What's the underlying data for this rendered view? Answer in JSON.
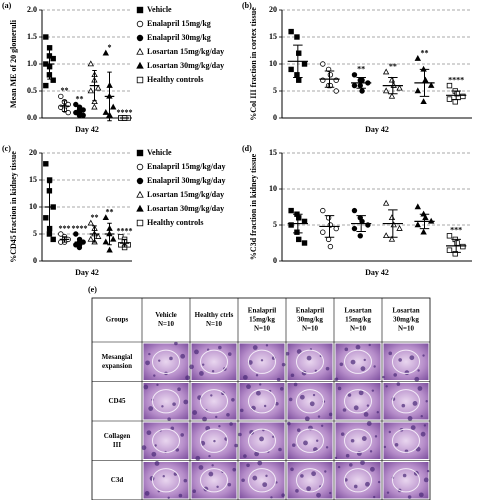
{
  "chart_data": [
    {
      "type": "dotplot",
      "label": "(a)",
      "ylabel": "Mean ME of 20 glomeruli",
      "xlabel": "Day 42",
      "legend": true,
      "grid": true,
      "ylim": [
        0,
        2
      ],
      "yticks": [
        {
          "value": 0,
          "label": "0.0"
        },
        {
          "value": 0.5,
          "label": "0.5"
        },
        {
          "value": 1,
          "label": "1.0"
        },
        {
          "value": 1.5,
          "label": "1.5"
        },
        {
          "value": 2,
          "label": "2.0"
        }
      ],
      "series": [
        {
          "name": "Vehicle",
          "marker": "square",
          "filled": true,
          "color": "#000",
          "values": [
            1.5,
            1.3,
            1.15,
            1.1,
            1.0,
            0.95,
            0.8,
            0.7,
            0.6
          ],
          "mean": 1.0,
          "sd": 0.28
        },
        {
          "name": "Enalapril 15mg/kg",
          "marker": "circle",
          "filled": false,
          "color": "#000",
          "values": [
            0.4,
            0.3,
            0.3,
            0.25,
            0.2,
            0.2,
            0.15,
            0.1
          ],
          "mean": 0.22,
          "sd": 0.1,
          "annotation": "**"
        },
        {
          "name": "Enalapril 30mg/kg",
          "marker": "circle",
          "filled": true,
          "color": "#000",
          "values": [
            0.25,
            0.2,
            0.15,
            0.15,
            0.1,
            0.1,
            0.05,
            0.05
          ],
          "mean": 0.12,
          "sd": 0.07,
          "annotation": "**"
        },
        {
          "name": "Losartan 15mg/kg/day",
          "marker": "triangle",
          "filled": false,
          "color": "#000",
          "values": [
            1.0,
            0.8,
            0.7,
            0.55,
            0.5,
            0.3,
            0.2
          ],
          "mean": 0.6,
          "sd": 0.28
        },
        {
          "name": "Losartan 30mg/kg/day",
          "marker": "triangle",
          "filled": true,
          "color": "#000",
          "values": [
            1.2,
            0.6,
            0.4,
            0.2,
            0.1,
            0.05,
            0.05
          ],
          "mean": 0.4,
          "sd": 0.45,
          "annotation": "*"
        },
        {
          "name": "Healthy controls",
          "marker": "square",
          "filled": false,
          "color": "#000",
          "values": [
            0,
            0,
            0,
            0,
            0,
            0
          ],
          "mean": 0,
          "sd": 0,
          "annotation": "****"
        }
      ]
    },
    {
      "type": "dotplot",
      "label": "(b)",
      "ylabel": "%Col III fraction in cortex tissue",
      "xlabel": "Day 42",
      "legend": false,
      "grid": true,
      "ylim": [
        0,
        20
      ],
      "yticks": [
        0,
        5,
        10,
        15,
        20
      ],
      "series": [
        {
          "name": "Vehicle",
          "marker": "square",
          "filled": true,
          "color": "#000",
          "values": [
            16,
            15,
            12,
            10,
            9,
            8,
            7
          ],
          "mean": 10.5,
          "sd": 3
        },
        {
          "name": "Enalapril 15mg/kg",
          "marker": "circle",
          "filled": false,
          "color": "#000",
          "values": [
            10,
            9,
            8,
            7,
            7,
            6,
            6,
            5
          ],
          "mean": 7.2,
          "sd": 1.5
        },
        {
          "name": "Enalapril 30mg/kg",
          "marker": "circle",
          "filled": true,
          "color": "#000",
          "values": [
            8,
            7,
            7,
            6.5,
            6,
            6,
            5
          ],
          "mean": 6.5,
          "sd": 1,
          "annotation": "**"
        },
        {
          "name": "Losartan 15mg/kg/day",
          "marker": "triangle",
          "filled": false,
          "color": "#000",
          "values": [
            8.5,
            7,
            6,
            5.5,
            5,
            4
          ],
          "mean": 6,
          "sd": 1.5,
          "annotation": "**"
        },
        {
          "name": "Losartan 30mg/kg/day",
          "marker": "triangle",
          "filled": true,
          "color": "#000",
          "values": [
            11,
            9,
            7,
            6,
            5,
            3
          ],
          "mean": 6.5,
          "sd": 2.5,
          "annotation": "**"
        },
        {
          "name": "Healthy controls",
          "marker": "square",
          "filled": false,
          "color": "#000",
          "values": [
            6,
            5,
            4.5,
            4,
            3.5,
            3
          ],
          "mean": 4.2,
          "sd": 0.8,
          "annotation": "****"
        }
      ]
    },
    {
      "type": "dotplot",
      "label": "(c)",
      "ylabel": "%CD45 fraction in kidney tissue",
      "xlabel": "Day 42",
      "legend": true,
      "grid": true,
      "ylim": [
        0,
        20
      ],
      "yticks": [
        0,
        5,
        10,
        15,
        20
      ],
      "series": [
        {
          "name": "Vehicle",
          "marker": "square",
          "filled": true,
          "color": "#000",
          "values": [
            18,
            15,
            13,
            10,
            8,
            6,
            5,
            4
          ],
          "mean": 10,
          "sd": 4.5
        },
        {
          "name": "Enalapril 15mg/kg/day",
          "marker": "circle",
          "filled": false,
          "color": "#000",
          "values": [
            5,
            4.5,
            4,
            4,
            3.5,
            3.5
          ],
          "mean": 4,
          "sd": 0.5,
          "annotation": "***"
        },
        {
          "name": "Enalapril 30mg/kg/day",
          "marker": "circle",
          "filled": true,
          "color": "#000",
          "values": [
            5,
            4,
            3.5,
            3.5,
            3,
            3,
            2.5
          ],
          "mean": 3.5,
          "sd": 0.7,
          "annotation": "****"
        },
        {
          "name": "Losartan 15mg/kg/day",
          "marker": "triangle",
          "filled": false,
          "color": "#000",
          "values": [
            7,
            6,
            5,
            4.5,
            4,
            3.5
          ],
          "mean": 5,
          "sd": 1.5,
          "annotation": "**"
        },
        {
          "name": "Losartan 30mg/kg/day",
          "marker": "triangle",
          "filled": true,
          "color": "#000",
          "values": [
            8,
            6,
            5,
            4,
            3.5,
            2
          ],
          "mean": 5,
          "sd": 2,
          "annotation": "**"
        },
        {
          "name": "Healthy controls",
          "marker": "square",
          "filled": false,
          "color": "#000",
          "values": [
            4.5,
            4,
            3.5,
            3,
            3,
            2.5
          ],
          "mean": 3.3,
          "sd": 0.7,
          "annotation": "****"
        }
      ]
    },
    {
      "type": "dotplot",
      "label": "(d)",
      "ylabel": "%C3d fraction in kidney tissue",
      "xlabel": "Day 42",
      "legend": false,
      "grid": true,
      "ylim": [
        0,
        15
      ],
      "yticks": [
        0,
        5,
        10,
        15
      ],
      "series": [
        {
          "name": "Vehicle",
          "marker": "square",
          "filled": true,
          "color": "#000",
          "values": [
            7,
            6.5,
            6,
            5.5,
            5,
            4,
            3,
            2.5
          ],
          "mean": 5.2,
          "sd": 1.3
        },
        {
          "name": "Enalapril 15mg/kg/day",
          "marker": "circle",
          "filled": false,
          "color": "#000",
          "values": [
            7,
            6,
            5,
            4.5,
            4,
            3,
            2
          ],
          "mean": 4.8,
          "sd": 1.5
        },
        {
          "name": "Enalapril 30mg/kg/day",
          "marker": "circle",
          "filled": true,
          "color": "#000",
          "values": [
            7,
            6,
            5.5,
            5,
            4.5,
            3.5
          ],
          "mean": 5.2,
          "sd": 1.1
        },
        {
          "name": "Losartan 15mg/kg/day",
          "marker": "triangle",
          "filled": false,
          "color": "#000",
          "values": [
            8,
            6,
            5,
            4.5,
            3.5,
            3
          ],
          "mean": 5.2,
          "sd": 1.9
        },
        {
          "name": "Losartan 30mg/kg/day",
          "marker": "triangle",
          "filled": true,
          "color": "#000",
          "values": [
            7.5,
            6.5,
            6,
            5.5,
            5,
            4
          ],
          "mean": 5.5,
          "sd": 1
        },
        {
          "name": "Healthy controls",
          "marker": "square",
          "filled": false,
          "color": "#000",
          "values": [
            3.5,
            3,
            2.5,
            2,
            1.5,
            1
          ],
          "mean": 2.1,
          "sd": 0.9,
          "annotation": "***"
        }
      ]
    }
  ],
  "table": {
    "label": "(e)",
    "columns": [
      [
        "Groups"
      ],
      [
        "Vehicle",
        "N=10"
      ],
      [
        "Healthy ctrls",
        "N=10"
      ],
      [
        "Enalapril",
        "15mg/kg",
        "N=10"
      ],
      [
        "Enalapril",
        "30mg/kg",
        "N=10"
      ],
      [
        "Losartan",
        "15mg/kg",
        "N=10"
      ],
      [
        "Losartan",
        "30mg/kg",
        "N=10"
      ]
    ],
    "rows": [
      [
        "Mesangial",
        "expansion"
      ],
      [
        "CD45"
      ],
      [
        "Collagen",
        "III"
      ],
      [
        "C3d"
      ]
    ]
  }
}
